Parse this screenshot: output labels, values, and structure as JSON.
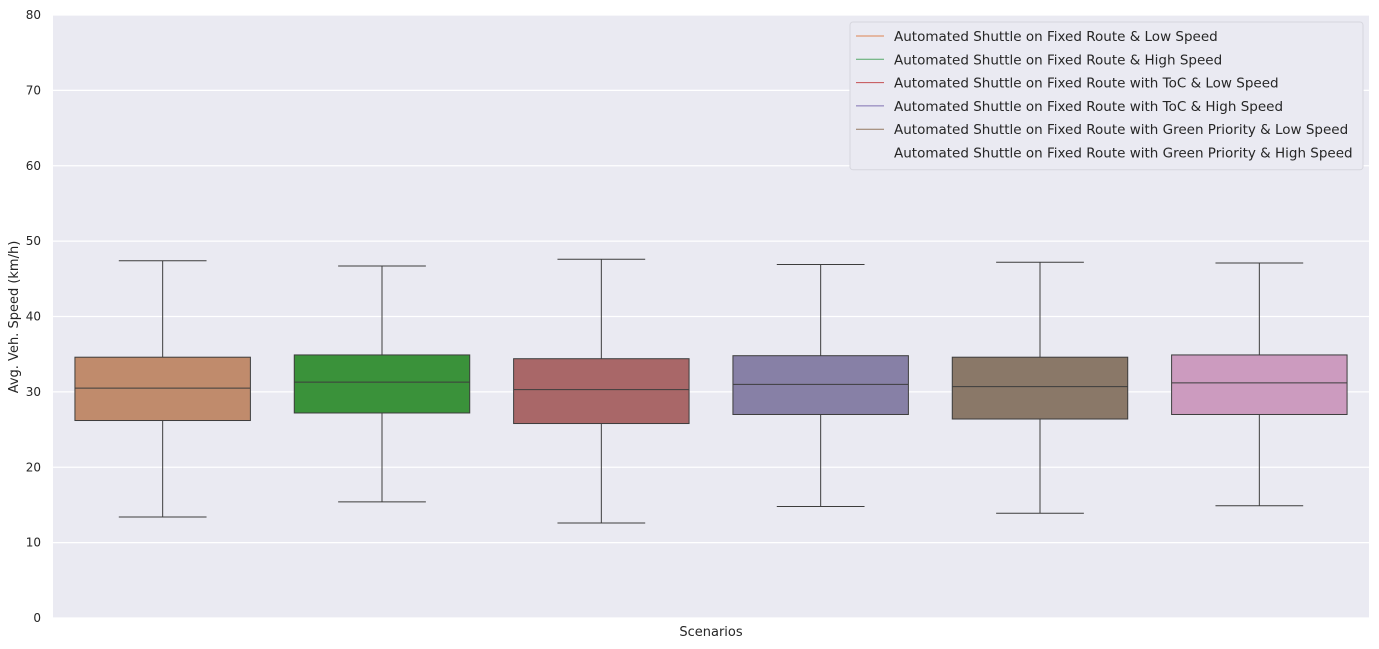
{
  "chart_data": {
    "type": "box",
    "xlabel": "Scenarios",
    "ylabel": "Avg. Veh. Speed (km/h)",
    "ylim": [
      0,
      80
    ],
    "yticks": [
      0,
      10,
      20,
      30,
      40,
      50,
      60,
      70,
      80
    ],
    "grid": true,
    "legend_position": "top-right",
    "series": [
      {
        "name": "Automated Shuttle on Fixed Route & Low Speed",
        "color": "#c08b6c",
        "line_color": "#dd8452",
        "min": 13.4,
        "q1": 26.2,
        "median": 30.5,
        "q3": 34.6,
        "max": 47.4
      },
      {
        "name": "Automated Shuttle on Fixed Route & High Speed",
        "color": "#3a923a",
        "line_color": "#55a868",
        "min": 15.4,
        "q1": 27.2,
        "median": 31.3,
        "q3": 34.9,
        "max": 46.7
      },
      {
        "name": "Automated Shuttle on Fixed Route with ToC & Low Speed",
        "color": "#a96768",
        "line_color": "#c44e52",
        "min": 12.6,
        "q1": 25.8,
        "median": 30.3,
        "q3": 34.4,
        "max": 47.6
      },
      {
        "name": "Automated Shuttle on Fixed Route with ToC & High Speed",
        "color": "#8780a6",
        "line_color": "#8172b3",
        "min": 14.8,
        "q1": 27.0,
        "median": 31.0,
        "q3": 34.8,
        "max": 46.9
      },
      {
        "name": "Automated Shuttle on Fixed Route with Green Priority & Low Speed",
        "color": "#8a7868",
        "line_color": "#937860",
        "min": 13.9,
        "q1": 26.4,
        "median": 30.7,
        "q3": 34.6,
        "max": 47.2
      },
      {
        "name": "Automated Shuttle on Fixed Route with Green Priority & High Speed",
        "color": "#cc9bbf",
        "line_color": "#eaeaf2",
        "min": 14.9,
        "q1": 27.0,
        "median": 31.2,
        "q3": 34.9,
        "max": 47.1
      }
    ]
  }
}
